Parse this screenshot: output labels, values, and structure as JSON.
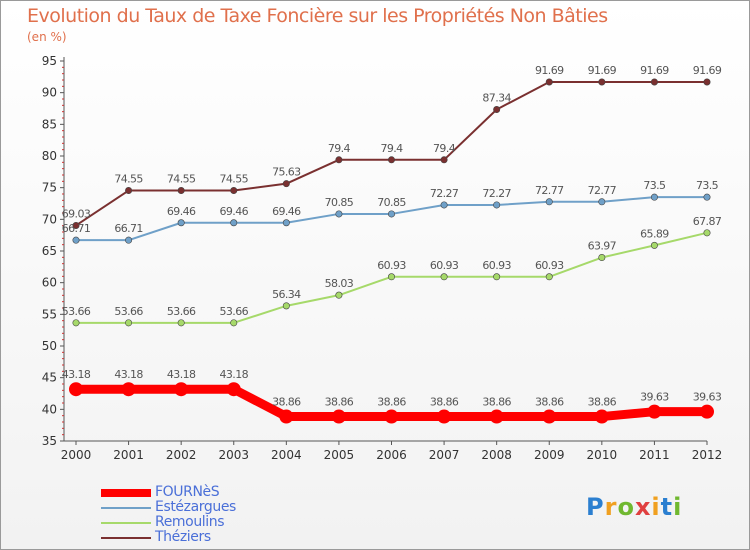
{
  "title": "Evolution du Taux de Taxe Foncière sur les Propriétés Non Bâties",
  "unit": "(en %)",
  "logo": {
    "text": "Proxiti",
    "colors": [
      "#2b7fd0",
      "#f0a020",
      "#70b830",
      "#e04040",
      "#f0a020",
      "#2b7fd0",
      "#70b830"
    ]
  },
  "chart_data": {
    "type": "line",
    "title": "Evolution du Taux de Taxe Foncière sur les Propriétés Non Bâties",
    "ylabel": "(en %)",
    "xlabel": "",
    "x": [
      "2000",
      "2001",
      "2002",
      "2003",
      "2004",
      "2005",
      "2006",
      "2007",
      "2008",
      "2009",
      "2010",
      "2011",
      "2012"
    ],
    "ylim": [
      35,
      95
    ],
    "yticks": [
      35,
      40,
      45,
      50,
      55,
      60,
      65,
      70,
      75,
      80,
      85,
      90,
      95
    ],
    "grid": false,
    "legend_position": "bottom-left",
    "series": [
      {
        "name": "FOURNèS",
        "color": "#ff0000",
        "thick": true,
        "values": [
          43.18,
          43.18,
          43.18,
          43.18,
          38.86,
          38.86,
          38.86,
          38.86,
          38.86,
          38.86,
          38.86,
          39.63,
          39.63
        ],
        "labels": [
          "43.18",
          "43.18",
          "43.18",
          "43.18",
          "38.86",
          "38.86",
          "38.86",
          "38.86",
          "38.86",
          "38.86",
          "38.86",
          "39.63",
          "39.63"
        ]
      },
      {
        "name": "Estézargues",
        "color": "#6fa0c8",
        "thick": false,
        "values": [
          66.71,
          66.71,
          69.46,
          69.46,
          69.46,
          70.85,
          70.85,
          72.27,
          72.27,
          72.77,
          72.77,
          73.5,
          73.5
        ],
        "labels": [
          "66.71",
          "66.71",
          "69.46",
          "69.46",
          "69.46",
          "70.85",
          "70.85",
          "72.27",
          "72.27",
          "72.77",
          "72.77",
          "73.5",
          "73.5"
        ]
      },
      {
        "name": "Remoulins",
        "color": "#a6d96a",
        "thick": false,
        "values": [
          53.66,
          53.66,
          53.66,
          53.66,
          56.34,
          58.03,
          60.93,
          60.93,
          60.93,
          60.93,
          63.97,
          65.89,
          67.87
        ],
        "labels": [
          "53.66",
          "53.66",
          "53.66",
          "53.66",
          "56.34",
          "58.03",
          "60.93",
          "60.93",
          "60.93",
          "60.93",
          "63.97",
          "65.89",
          "67.87"
        ]
      },
      {
        "name": "Théziers",
        "color": "#7a3030",
        "thick": false,
        "values": [
          69.03,
          74.55,
          74.55,
          74.55,
          75.63,
          79.4,
          79.4,
          79.4,
          87.34,
          91.69,
          91.69,
          91.69,
          91.69
        ],
        "labels": [
          "69.03",
          "74.55",
          "74.55",
          "74.55",
          "75.63",
          "79.4",
          "79.4",
          "79.4",
          "87.34",
          "91.69",
          "91.69",
          "91.69",
          "91.69"
        ]
      }
    ]
  }
}
